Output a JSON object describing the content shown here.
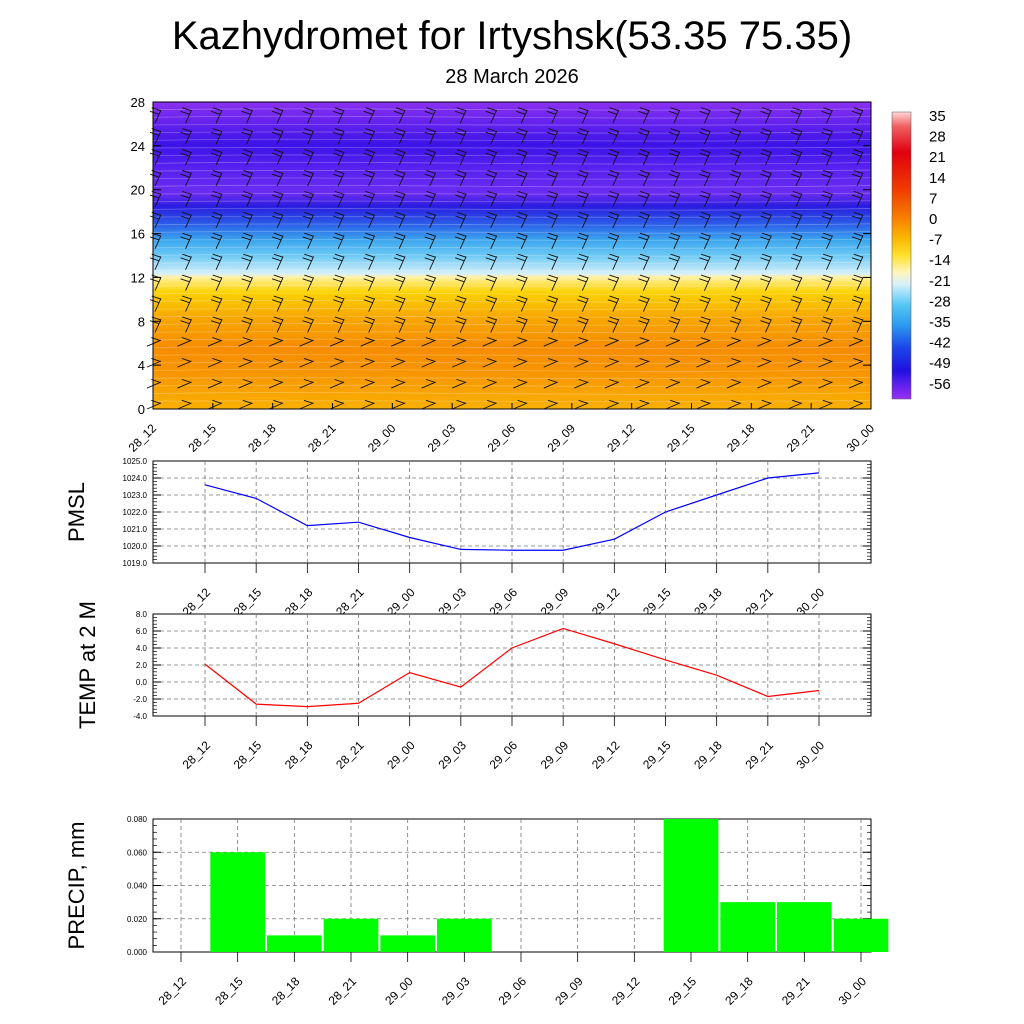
{
  "title": "Kazhydromet for Irtyshsk(53.35 75.35)",
  "subtitle": "28 March 2026",
  "time_labels": [
    "28_12",
    "28_15",
    "28_18",
    "28_21",
    "29_00",
    "29_03",
    "29_06",
    "29_09",
    "29_12",
    "29_15",
    "29_18",
    "29_21",
    "30_00"
  ],
  "chart_data": [
    {
      "type": "heatmap",
      "name": "Temperature cross-section with wind barbs",
      "x": [
        "28_12",
        "28_15",
        "28_18",
        "28_21",
        "29_00",
        "29_03",
        "29_06",
        "29_09",
        "29_12",
        "29_15",
        "29_18",
        "29_21",
        "30_00"
      ],
      "ylim": [
        0,
        28
      ],
      "yticks": [
        "0",
        "4",
        "8",
        "12",
        "16",
        "20",
        "24",
        "28"
      ],
      "colorbar_labels": [
        "35",
        "28",
        "21",
        "14",
        "7",
        "0",
        "-7",
        "-14",
        "-21",
        "-28",
        "-35",
        "-42",
        "-49",
        "-56"
      ],
      "colorbar_range": [
        -63,
        42
      ]
    },
    {
      "type": "line",
      "ylabel": "PMSL",
      "x": [
        "28_12",
        "28_15",
        "28_18",
        "28_21",
        "29_00",
        "29_03",
        "29_06",
        "29_09",
        "29_12",
        "29_15",
        "29_18",
        "29_21",
        "30_00"
      ],
      "values": [
        1023.6,
        1022.8,
        1021.2,
        1021.4,
        1020.5,
        1019.8,
        1019.75,
        1019.75,
        1020.4,
        1022.0,
        1023.0,
        1024.0,
        1024.3
      ],
      "ylim": [
        1019.0,
        1025.0
      ],
      "yticks": [
        "1019.0",
        "1020.0",
        "1021.0",
        "1022.0",
        "1023.0",
        "1024.0",
        "1025.0"
      ],
      "color": "#0000ff"
    },
    {
      "type": "line",
      "ylabel": "TEMP at 2 M",
      "x": [
        "28_12",
        "28_15",
        "28_18",
        "28_21",
        "29_00",
        "29_03",
        "29_06",
        "29_09",
        "29_12",
        "29_15",
        "29_18",
        "29_21",
        "30_00"
      ],
      "values": [
        2.1,
        -2.6,
        -2.9,
        -2.5,
        1.1,
        -0.6,
        4.0,
        6.3,
        4.5,
        2.6,
        0.8,
        -1.7,
        -1.0
      ],
      "ylim": [
        -4.0,
        8.0
      ],
      "yticks": [
        "-4.0",
        "-2.0",
        "0.0",
        "2.0",
        "4.0",
        "6.0",
        "8.0"
      ],
      "color": "#ff0000"
    },
    {
      "type": "bar",
      "ylabel": "PRECIP, mm",
      "x": [
        "28_12",
        "28_15",
        "28_18",
        "28_21",
        "29_00",
        "29_03",
        "29_06",
        "29_09",
        "29_12",
        "29_15",
        "29_18",
        "29_21",
        "30_00"
      ],
      "values": [
        0,
        0.06,
        0.01,
        0.02,
        0.01,
        0.02,
        0,
        0,
        0,
        0.08,
        0.03,
        0.03,
        0.02
      ],
      "ylim": [
        0,
        0.08
      ],
      "yticks": [
        "0.000",
        "0.020",
        "0.040",
        "0.060",
        "0.080"
      ],
      "color": "#00ff00"
    }
  ]
}
